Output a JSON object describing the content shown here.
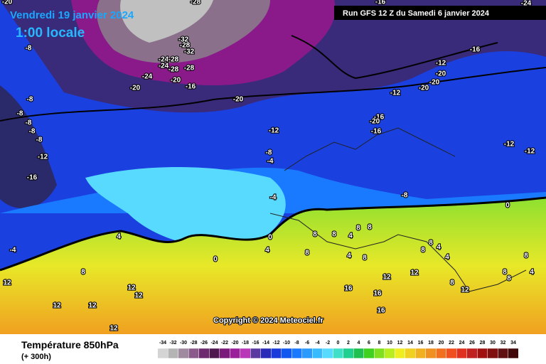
{
  "header": {
    "date": "Vendredi 19 janvier 2024",
    "time": "1:00 locale",
    "run": "Run GFS 12 Z du Samedi 6 janvier 2024"
  },
  "map": {
    "copyright": "Copyright © 2024 Meteociel.fr",
    "labels": [
      -28,
      -16,
      -24,
      -20,
      -8,
      -8,
      -8,
      -8,
      -8,
      -8,
      -12,
      -16,
      -4,
      -24,
      -28,
      -24,
      -28,
      -28,
      -32,
      -28,
      -32,
      -24,
      -20,
      -16,
      -20,
      -20,
      -12,
      -8,
      -4,
      -4,
      0,
      4,
      0,
      -16,
      -12,
      -20,
      -20,
      -20,
      -12,
      -16,
      -20,
      -16,
      -12,
      -12,
      -8,
      0,
      4,
      8,
      12,
      12,
      12,
      12,
      12,
      12,
      8,
      8,
      4,
      8,
      8,
      8,
      4,
      8,
      12,
      16,
      16,
      16,
      8,
      4,
      8,
      4,
      8,
      12,
      12,
      8,
      8,
      8,
      4
    ]
  },
  "footer": {
    "title": "Température 850hPa",
    "subtitle": "(+ 300h)",
    "scale": {
      "values": [
        -34,
        -32,
        -30,
        -28,
        -26,
        -24,
        -22,
        -20,
        -18,
        -16,
        -14,
        -12,
        -10,
        -8,
        -6,
        -4,
        -2,
        0,
        2,
        4,
        6,
        8,
        10,
        12,
        14,
        16,
        18,
        20,
        22,
        24,
        26,
        28,
        30,
        32,
        34
      ],
      "colors": [
        "#d4d4d4",
        "#b4b4b4",
        "#a08aa0",
        "#8a5a8a",
        "#6e2a6e",
        "#4e184e",
        "#7a1a7a",
        "#9a209a",
        "#b838b8",
        "#5a3aa0",
        "#2a2ab8",
        "#1a3ada",
        "#1058ee",
        "#1a7aff",
        "#2a9aff",
        "#38baff",
        "#58daff",
        "#40e0c8",
        "#20d090",
        "#20c050",
        "#40d020",
        "#80e020",
        "#b8ee20",
        "#eeee20",
        "#f0d020",
        "#f0b020",
        "#f09020",
        "#f07020",
        "#f05020",
        "#e03020",
        "#c02020",
        "#a01010",
        "#801010",
        "#601010",
        "#400808"
      ]
    }
  }
}
